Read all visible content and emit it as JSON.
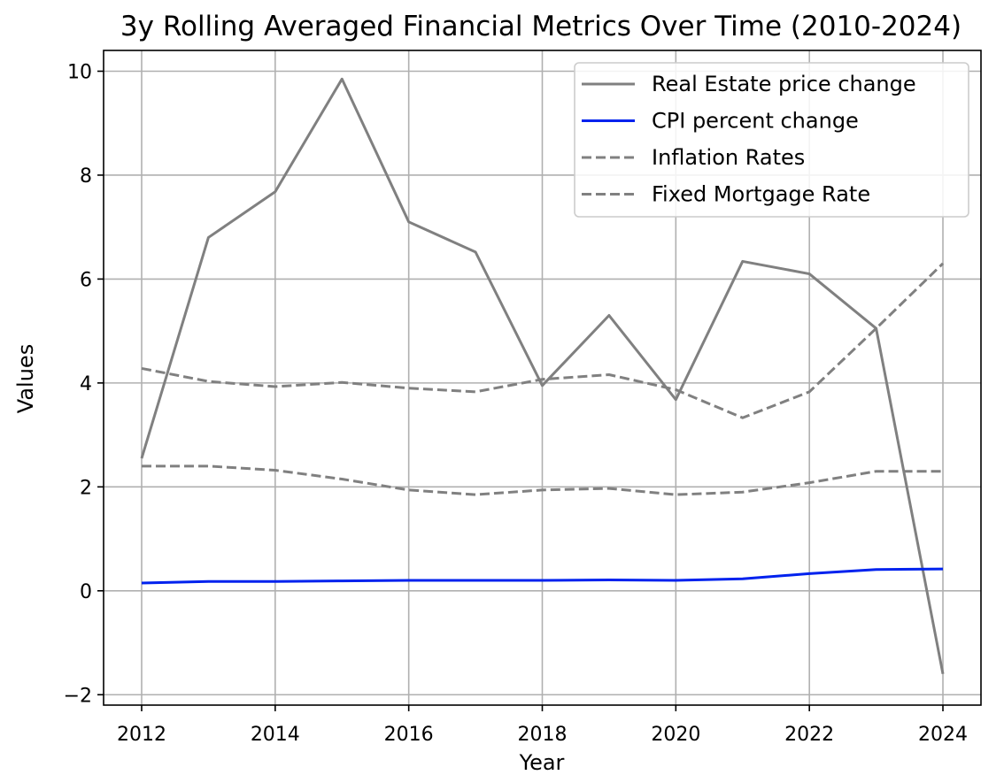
{
  "chart_data": {
    "type": "line",
    "title": "3y Rolling Averaged Financial Metrics Over Time (2010-2024)",
    "xlabel": "Year",
    "ylabel": "Values",
    "xlim": [
      2011.43,
      2024.57
    ],
    "ylim": [
      -2.2,
      10.4
    ],
    "xticks": [
      2012,
      2014,
      2016,
      2018,
      2020,
      2022,
      2024
    ],
    "yticks": [
      -2,
      0,
      2,
      4,
      6,
      8,
      10
    ],
    "ytick_labels": [
      "−2",
      "0",
      "2",
      "4",
      "6",
      "8",
      "10"
    ],
    "grid": true,
    "legend_position": "upper-right",
    "x": [
      2012,
      2013,
      2014,
      2015,
      2016,
      2017,
      2018,
      2019,
      2020,
      2021,
      2022,
      2023,
      2024
    ],
    "series": [
      {
        "name": "Real Estate price change",
        "color": "#808080",
        "dash": "solid",
        "x": [
          2012,
          2013,
          2014,
          2015,
          2016,
          2017,
          2018,
          2019,
          2020,
          2021,
          2022,
          2023,
          2024
        ],
        "values": [
          2.55,
          6.8,
          7.68,
          9.85,
          7.1,
          6.52,
          3.95,
          5.3,
          3.68,
          6.34,
          6.1,
          5.05,
          -1.6
        ]
      },
      {
        "name": "CPI percent change",
        "color": "#0022ee",
        "dash": "solid",
        "x": [
          2012,
          2013,
          2014,
          2015,
          2016,
          2017,
          2018,
          2019,
          2020,
          2021,
          2022,
          2023,
          2024
        ],
        "values": [
          0.15,
          0.18,
          0.18,
          0.19,
          0.2,
          0.2,
          0.2,
          0.21,
          0.2,
          0.23,
          0.33,
          0.41,
          0.42
        ]
      },
      {
        "name": "Inflation Rates",
        "color": "#808080",
        "dash": "dashed",
        "x": [
          2012,
          2013,
          2014,
          2015,
          2016,
          2017,
          2018,
          2019,
          2020,
          2021,
          2022,
          2023,
          2024
        ],
        "values": [
          2.4,
          2.4,
          2.32,
          2.15,
          1.94,
          1.85,
          1.94,
          1.97,
          1.85,
          1.9,
          2.08,
          2.3,
          2.3
        ]
      },
      {
        "name": "Fixed Mortgage Rate",
        "color": "#808080",
        "dash": "dashed",
        "x": [
          2012,
          2013,
          2014,
          2015,
          2016,
          2017,
          2018,
          2019,
          2020,
          2021,
          2022,
          2023,
          2024
        ],
        "values": [
          4.28,
          4.03,
          3.93,
          4.01,
          3.9,
          3.83,
          4.07,
          4.16,
          3.87,
          3.33,
          3.83,
          5.05,
          6.3
        ]
      }
    ]
  }
}
